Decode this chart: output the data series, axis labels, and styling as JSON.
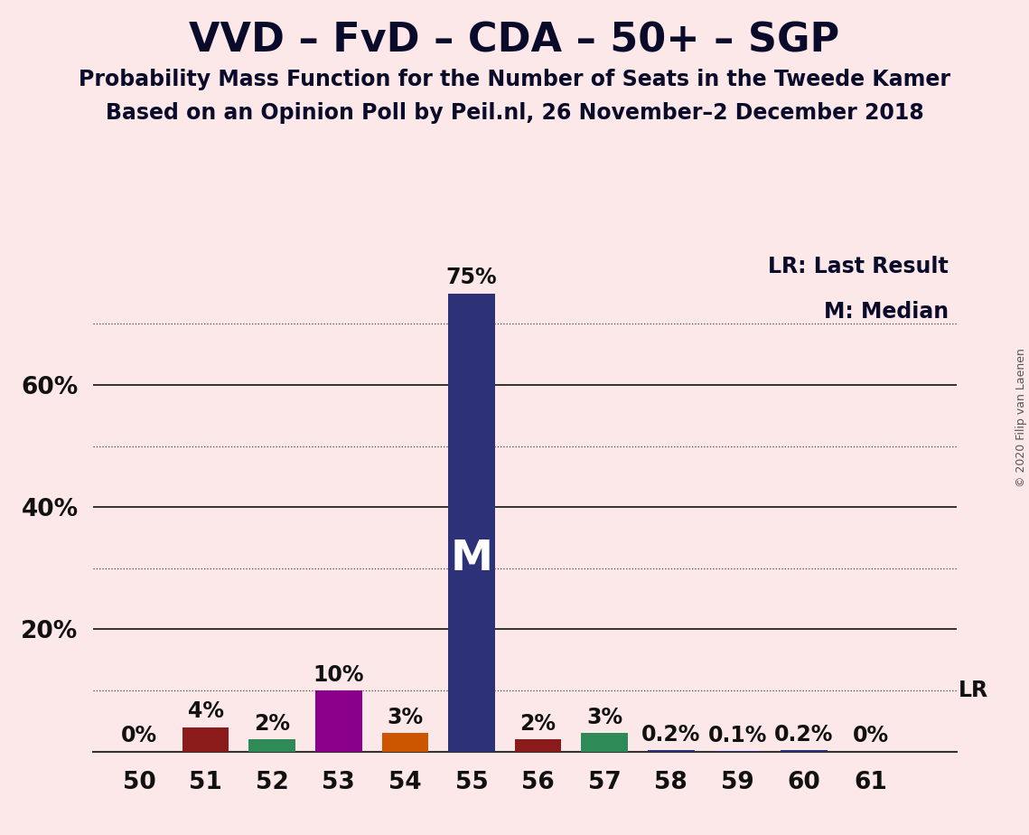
{
  "title": "VVD – FvD – CDA – 50+ – SGP",
  "subtitle1": "Probability Mass Function for the Number of Seats in the Tweede Kamer",
  "subtitle2": "Based on an Opinion Poll by Peil.nl, 26 November–2 December 2018",
  "copyright": "© 2020 Filip van Laenen",
  "background_color": "#fce8e8",
  "seats": [
    50,
    51,
    52,
    53,
    54,
    55,
    56,
    57,
    58,
    59,
    60,
    61
  ],
  "values": [
    0.0,
    4.0,
    2.0,
    10.0,
    3.0,
    75.0,
    2.0,
    3.0,
    0.2,
    0.1,
    0.2,
    0.0
  ],
  "bar_colors": [
    "#2d3278",
    "#8b1a1a",
    "#2e8b57",
    "#8b008b",
    "#cc5500",
    "#2d3278",
    "#8b1a1a",
    "#2e8b57",
    "#2d3278",
    "#2d3278",
    "#2d3278",
    "#2d3278"
  ],
  "median_seat": 55,
  "lr_value": 10.0,
  "label_LR": "LR",
  "legend_lr": "LR: Last Result",
  "legend_m": "M: Median",
  "ylim_max": 82,
  "dotted_yticks": [
    10,
    30,
    50,
    70
  ],
  "solid_yticks": [
    20,
    40,
    60
  ],
  "ytick_labels_positions": [
    20,
    40,
    60
  ],
  "ytick_labels_text": [
    "20%",
    "40%",
    "60%"
  ],
  "bar_width": 0.7,
  "title_fontsize": 32,
  "subtitle_fontsize": 17,
  "tick_fontsize": 19,
  "annotation_fontsize": 17,
  "legend_fontsize": 17,
  "copyright_fontsize": 9,
  "median_label_fontsize": 34,
  "lr_label_fontsize": 17
}
